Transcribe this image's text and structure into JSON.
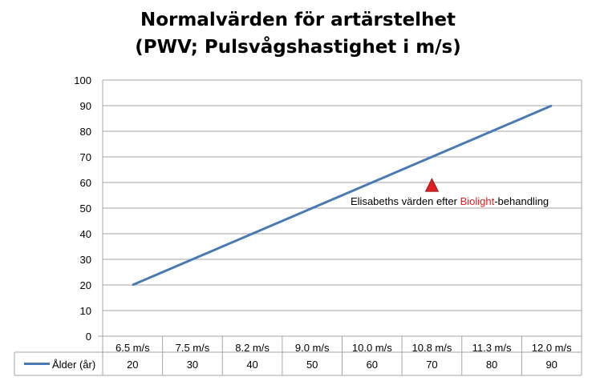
{
  "chart_data": {
    "type": "line",
    "title": [
      "Normalvärden för artärstelhet",
      "(PWV; Pulsvågshastighet i m/s)"
    ],
    "categories": [
      "6.5 m/s",
      "7.5 m/s",
      "8.2 m/s",
      "9.0 m/s",
      "10.0 m/s",
      "10.8 m/s",
      "11.3 m/s",
      "12.0 m/s"
    ],
    "series": [
      {
        "name": "Ålder (år)",
        "values": [
          20,
          30,
          40,
          50,
          60,
          70,
          80,
          90
        ],
        "color": "#4a7ab4"
      }
    ],
    "ylim": [
      0,
      100
    ],
    "yticks": [
      "0",
      "10",
      "20",
      "30",
      "40",
      "50",
      "60",
      "70",
      "80",
      "90",
      "100"
    ],
    "grid": true,
    "legend": "data-table-left",
    "annotation": {
      "marker": "triangle",
      "marker_color": "#e02020",
      "x_category": "10.8 m/s",
      "y": 59,
      "text_before": "Elisabeths värden efter ",
      "text_highlight": "Biolight",
      "text_after": "-behandling",
      "highlight_color": "#e02020"
    },
    "data_table": {
      "values": [
        "20",
        "30",
        "40",
        "50",
        "60",
        "70",
        "80",
        "90"
      ]
    }
  }
}
